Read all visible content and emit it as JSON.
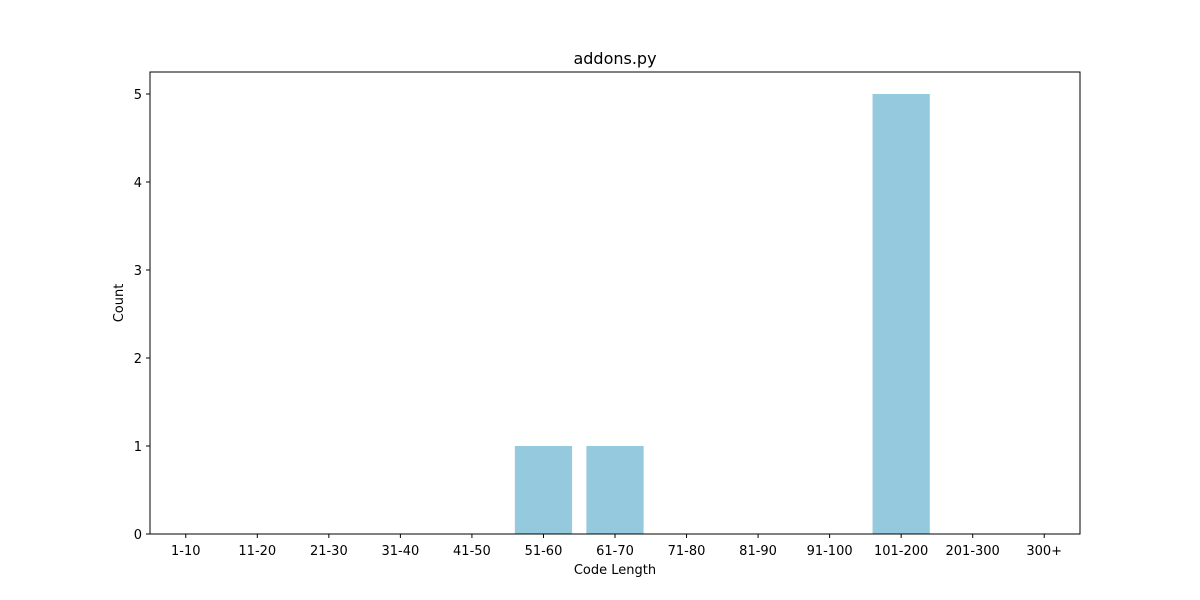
{
  "chart_data": {
    "type": "bar",
    "title": "addons.py",
    "xlabel": "Code Length",
    "ylabel": "Count",
    "categories": [
      "1-10",
      "11-20",
      "21-30",
      "31-40",
      "41-50",
      "51-60",
      "61-70",
      "71-80",
      "81-90",
      "91-100",
      "101-200",
      "201-300",
      "300+"
    ],
    "values": [
      0,
      0,
      0,
      0,
      0,
      1,
      1,
      0,
      0,
      0,
      5,
      0,
      0
    ],
    "ylim": [
      0,
      5.25
    ],
    "yticks": [
      0,
      1,
      2,
      3,
      4,
      5
    ],
    "bar_color": "#95c9dd",
    "grid": false,
    "legend": "none"
  }
}
